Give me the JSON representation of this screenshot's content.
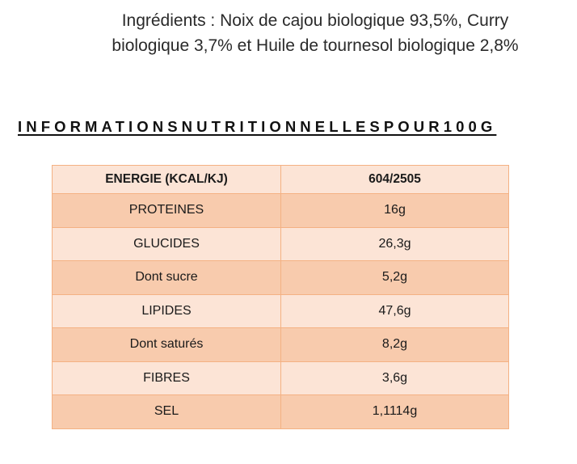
{
  "ingredients": {
    "line1": "Ingrédients : Noix de cajou biologique 93,5%, Curry",
    "line2": "biologique 3,7% et Huile de tournesol biologique 2,8%"
  },
  "nutrition": {
    "heading": "INFORMATIONSNUTRITIONNELLESPOUR100G",
    "header_row": {
      "label": "ENERGIE (KCAL/KJ)",
      "value": "604/2505"
    },
    "rows": [
      {
        "label": "PROTEINES",
        "value": "16g"
      },
      {
        "label": "GLUCIDES",
        "value": "26,3g"
      },
      {
        "label": "Dont sucre",
        "value": "5,2g"
      },
      {
        "label": "LIPIDES",
        "value": "47,6g"
      },
      {
        "label": "Dont saturés",
        "value": "8,2g"
      },
      {
        "label": "FIBRES",
        "value": "3,6g"
      },
      {
        "label": "SEL",
        "value": "1,1114g"
      }
    ]
  },
  "colors": {
    "table_border": "#f4b183",
    "row_dark": "#f8cbad",
    "row_light": "#fce4d6"
  }
}
